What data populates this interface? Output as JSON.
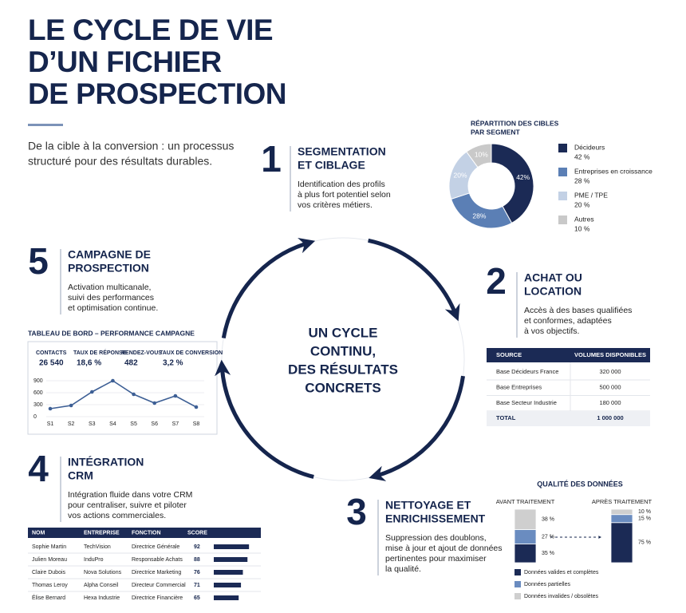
{
  "header": {
    "title_lines": [
      "LE CYCLE DE VIE",
      "D’UN FICHIER",
      "DE PROSPECTION"
    ],
    "subtitle_lines": [
      "De la cible à la conversion : un processus",
      "structuré pour des résultats durables."
    ]
  },
  "center": {
    "lines": [
      "UN CYCLE",
      "CONTINU,",
      "DES RÉSULTATS",
      "CONCRETS"
    ]
  },
  "steps": [
    {
      "number": 1,
      "title_lines": [
        "SEGMENTATION",
        "ET CIBLAGE"
      ],
      "text_lines": [
        "Identification des profils",
        "à plus fort potentiel selon",
        "vos critères métiers."
      ]
    },
    {
      "number": 2,
      "title_lines": [
        "ACHAT OU",
        "LOCATION"
      ],
      "text_lines": [
        "Accès à des bases qualifiées",
        "et conformes, adaptées",
        "à vos objectifs."
      ]
    },
    {
      "number": 3,
      "title_lines": [
        "NETTOYAGE ET",
        "ENRICHISSEMENT"
      ],
      "text_lines": [
        "Suppression des doublons,",
        "mise à jour et ajout de données",
        "pertinentes pour maximiser",
        "la qualité."
      ]
    },
    {
      "number": 4,
      "title_lines": [
        "INTÉGRATION",
        "CRM"
      ],
      "text_lines": [
        "Intégration fluide dans votre CRM",
        "pour centraliser, suivre et piloter",
        "vos actions commerciales."
      ]
    },
    {
      "number": 5,
      "title_lines": [
        "CAMPAGNE DE",
        "PROSPECTION"
      ],
      "text_lines": [
        "Activation multicanale,",
        "suivi des performances",
        "et optimisation continue."
      ]
    }
  ],
  "chart_data": [
    {
      "type": "pie",
      "title_lines": [
        "RÉPARTITION DES CIBLES",
        "PAR SEGMENT"
      ],
      "categories": [
        "Décideurs",
        "Entreprises en croissance",
        "PME / TPE",
        "Autres"
      ],
      "values": [
        42,
        28,
        20,
        10
      ],
      "value_labels": [
        "42%",
        "28%",
        "20%",
        "10%"
      ],
      "legend_value_labels": [
        "42 %",
        "28 %",
        "20 %",
        "10 %"
      ],
      "colors": [
        "#1b2a55",
        "#5b7fb5",
        "#c3d1e5",
        "#c9c9c9"
      ]
    },
    {
      "type": "line",
      "title": "TABLEAU DE BORD – PERFORMANCE CAMPAGNE",
      "categories": [
        "S1",
        "S2",
        "S3",
        "S4",
        "S5",
        "S6",
        "S7",
        "S8"
      ],
      "values": [
        200,
        280,
        620,
        900,
        560,
        340,
        520,
        240
      ],
      "color": "#3d5f95",
      "ylim": [
        0,
        900
      ],
      "yticks": [
        0,
        300,
        600,
        900
      ]
    },
    {
      "type": "stacked_bar",
      "title": "QUALITÉ DES DONNÉES",
      "categories": [
        "AVANT TRAITEMENT",
        "APRÈS TRAITEMENT"
      ],
      "series": [
        {
          "name": "Données valides et complètes",
          "color": "#1b2a55",
          "values": [
            35,
            75
          ],
          "value_labels": [
            "35 %",
            "75 %"
          ]
        },
        {
          "name": "Données partielles",
          "color": "#6a8cc0",
          "values": [
            27,
            15
          ],
          "value_labels": [
            "27 %",
            "15 %"
          ]
        },
        {
          "name": "Données invalides / obsolètes",
          "color": "#cfcfcf",
          "values": [
            38,
            10
          ],
          "value_labels": [
            "38 %",
            "10 %"
          ]
        }
      ]
    }
  ],
  "dashboard_kpis": [
    {
      "label": "CONTACTS",
      "value": "26 540"
    },
    {
      "label": "TAUX DE RÉPONSE",
      "value": "18,6 %"
    },
    {
      "label": "RENDEZ-VOUS",
      "value": "482"
    },
    {
      "label": "TAUX DE CONVERSION",
      "value": "3,2 %"
    }
  ],
  "volume_table": {
    "headers": [
      "SOURCE",
      "VOLUMES DISPONIBLES"
    ],
    "rows": [
      [
        "Base Décideurs France",
        "320 000"
      ],
      [
        "Base Entreprises",
        "500 000"
      ],
      [
        "Base Secteur Industrie",
        "180 000"
      ]
    ],
    "total": [
      "TOTAL",
      "1 000 000"
    ]
  },
  "score_table": {
    "headers": [
      "NOM",
      "ENTREPRISE",
      "FONCTION",
      "SCORE"
    ],
    "rows": [
      [
        "Sophie Martin",
        "TechVision",
        "Directrice Générale",
        92
      ],
      [
        "Julien Moreau",
        "InduPro",
        "Responsable Achats",
        88
      ],
      [
        "Claire Dubois",
        "Nova Solutions",
        "Directrice Marketing",
        76
      ],
      [
        "Thomas Leroy",
        "Alpha Conseil",
        "Directeur Commercial",
        71
      ],
      [
        "Élise Bernard",
        "Hexa Industrie",
        "Directrice Financière",
        65
      ]
    ]
  }
}
